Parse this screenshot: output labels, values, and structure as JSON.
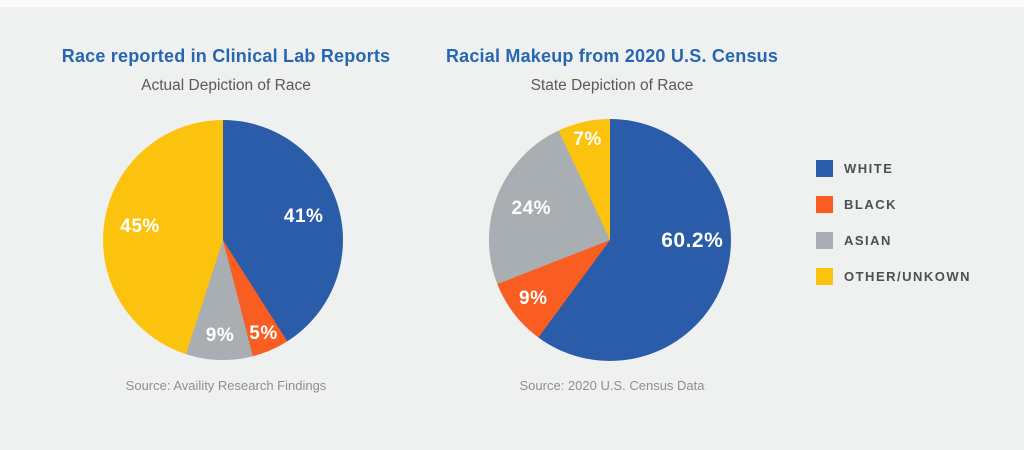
{
  "page": {
    "background_color": "#eff1f0",
    "top_strip_color": "#fafbfa"
  },
  "text_colors": {
    "title": "#2766b1",
    "subtitle": "#595959",
    "source": "#8f8f8f",
    "legend_label": "#4d4f52",
    "pie_label": "#ffffff"
  },
  "chart_data": [
    {
      "type": "pie",
      "title": "Race reported in Clinical Lab Reports",
      "subtitle": "Actual Depiction of Race",
      "source": "Source: Availity Research Findings",
      "categories": [
        "WHITE",
        "BLACK",
        "ASIAN",
        "OTHER/UNKOWN"
      ],
      "values": [
        41,
        5,
        9,
        45
      ],
      "labels": [
        "41%",
        "5%",
        "9%",
        "45%"
      ],
      "colors": [
        "#2b5caa",
        "#f95d22",
        "#a9aeb3",
        "#fcc30e"
      ],
      "start_angle": "top",
      "direction": "clockwise",
      "legend_position": "right"
    },
    {
      "type": "pie",
      "title": "Racial Makeup from 2020 U.S. Census",
      "subtitle": "State Depiction of Race",
      "source": "Source: 2020 U.S. Census Data",
      "categories": [
        "WHITE",
        "BLACK",
        "ASIAN",
        "OTHER/UNKOWN"
      ],
      "values": [
        60.2,
        9,
        24,
        7
      ],
      "labels": [
        "60.2%",
        "9%",
        "24%",
        "7%"
      ],
      "colors": [
        "#2b5caa",
        "#f95d22",
        "#a9aeb3",
        "#fcc30e"
      ],
      "start_angle": "top",
      "direction": "clockwise",
      "legend_position": "right"
    }
  ],
  "legend": {
    "items": [
      {
        "label": "WHITE",
        "color": "#2b5caa"
      },
      {
        "label": "BLACK",
        "color": "#f95d22"
      },
      {
        "label": "ASIAN",
        "color": "#a9aeb3"
      },
      {
        "label": "OTHER/UNKOWN",
        "color": "#fcc30e"
      }
    ]
  }
}
